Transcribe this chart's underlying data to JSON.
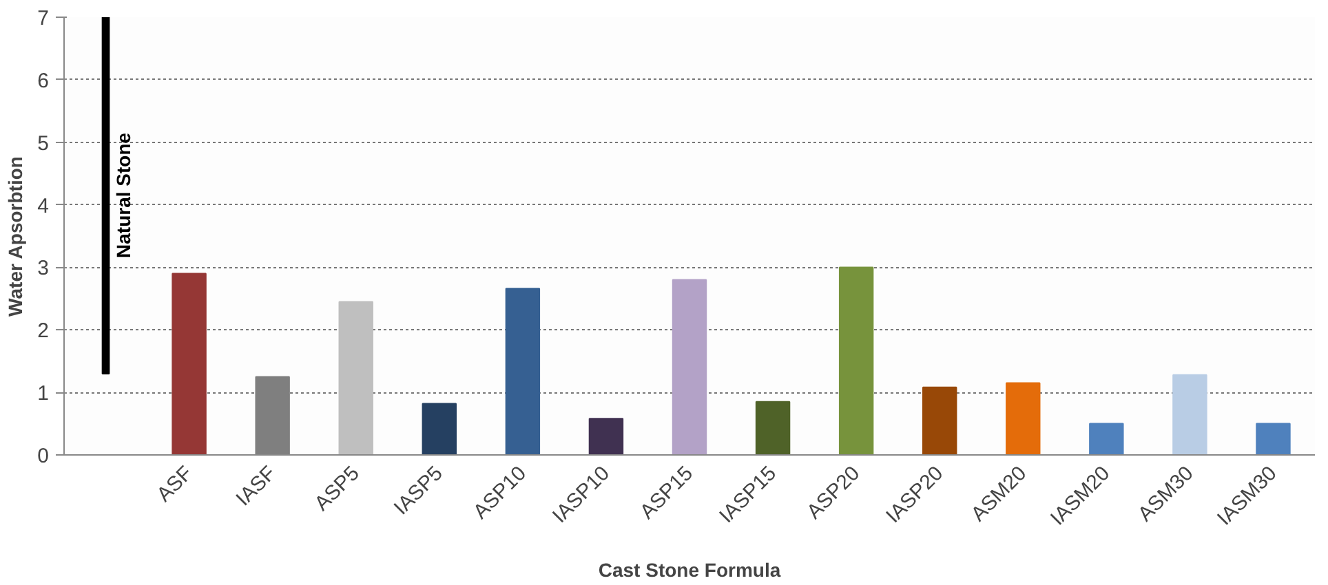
{
  "chart_data": {
    "type": "bar",
    "xlabel": "Cast Stone Formula",
    "ylabel": "Water Apsorbtion",
    "categories": [
      null,
      "ASF",
      "IASF",
      "ASP5",
      "IASP5",
      "ASP10",
      "IASP10",
      "ASP15",
      "IASP15",
      "ASP20",
      "IASP20",
      "ASM20",
      "IASM20",
      "ASM30",
      "IASM30"
    ],
    "values": [
      5.7,
      2.9,
      1.25,
      2.45,
      0.82,
      2.66,
      0.58,
      2.8,
      0.85,
      3.0,
      1.08,
      1.15,
      0.5,
      1.28,
      0.5
    ],
    "base": [
      1.3,
      0,
      0,
      0,
      0,
      0,
      0,
      0,
      0,
      0,
      0,
      0,
      0,
      0,
      0
    ],
    "colors": [
      "#000000",
      "#953735",
      "#7f7f7f",
      "#bfbfbf",
      "#254061",
      "#366092",
      "#403151",
      "#b3a2c7",
      "#4f6228",
      "#77933c",
      "#984807",
      "#e46c0a",
      "#4f81bd",
      "#b9cde5",
      "#4f81bd"
    ],
    "annotations": [
      "Natural Stone"
    ],
    "ylim": [
      0,
      7
    ],
    "yticks": [
      0,
      1,
      2,
      3,
      4,
      5,
      6,
      7
    ],
    "grid": "y"
  }
}
